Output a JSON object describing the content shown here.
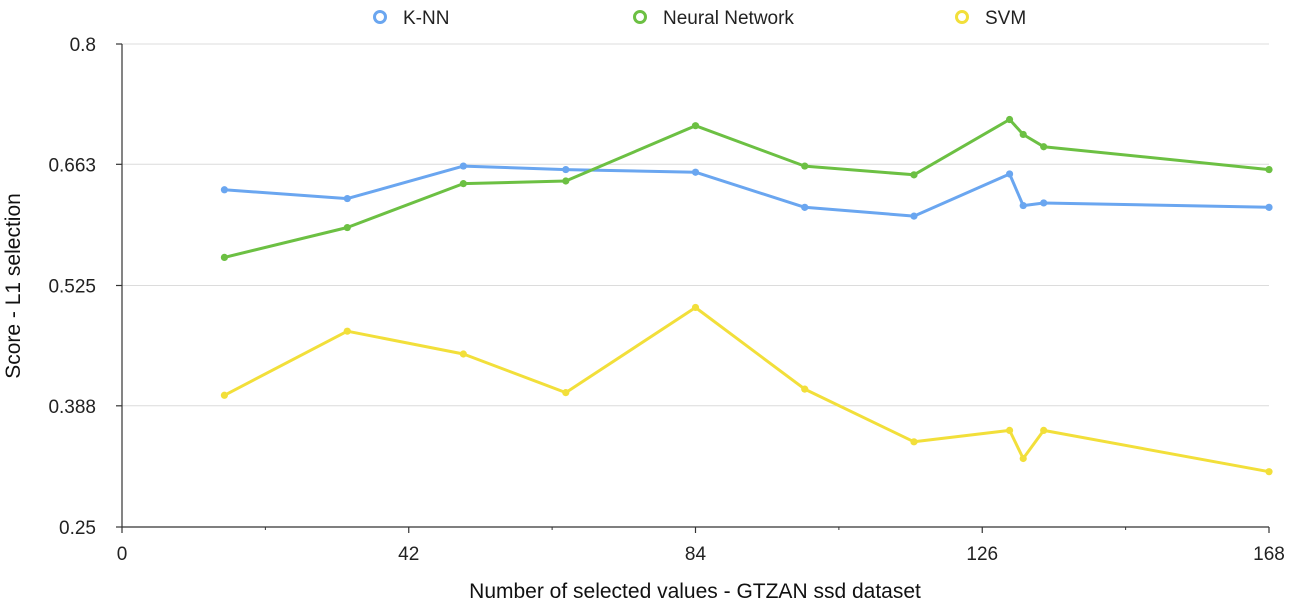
{
  "chart_data": {
    "type": "line",
    "title": "",
    "xlabel": "Number of selected values - GTZAN ssd dataset",
    "ylabel": "Score - L1 selection",
    "xlim": [
      0,
      168
    ],
    "ylim": [
      0.25,
      0.8
    ],
    "xticks": [
      0,
      42,
      84,
      126,
      168
    ],
    "xtick_labels": [
      "0",
      "42",
      "84",
      "126",
      "168"
    ],
    "yticks": [
      0.25,
      0.388,
      0.525,
      0.663,
      0.8
    ],
    "ytick_labels": [
      "0.25",
      "0.388",
      "0.525",
      "0.663",
      "0.8"
    ],
    "grid": true,
    "legend_position": "top",
    "x": [
      15,
      33,
      50,
      65,
      84,
      100,
      116,
      130,
      132,
      135,
      168
    ],
    "series": [
      {
        "name": "K-NN",
        "color": "#6aa6f0",
        "values": [
          0.634,
          0.624,
          0.661,
          0.657,
          0.654,
          0.614,
          0.604,
          0.652,
          0.616,
          0.619,
          0.614
        ]
      },
      {
        "name": "Neural Network",
        "color": "#6cc043",
        "values": [
          0.557,
          0.591,
          0.641,
          0.644,
          0.707,
          0.661,
          0.651,
          0.714,
          0.697,
          0.683,
          0.657
        ]
      },
      {
        "name": "SVM",
        "color": "#f2df3a",
        "values": [
          0.4,
          0.473,
          0.447,
          0.403,
          0.5,
          0.407,
          0.347,
          0.36,
          0.328,
          0.36,
          0.313
        ]
      }
    ]
  }
}
